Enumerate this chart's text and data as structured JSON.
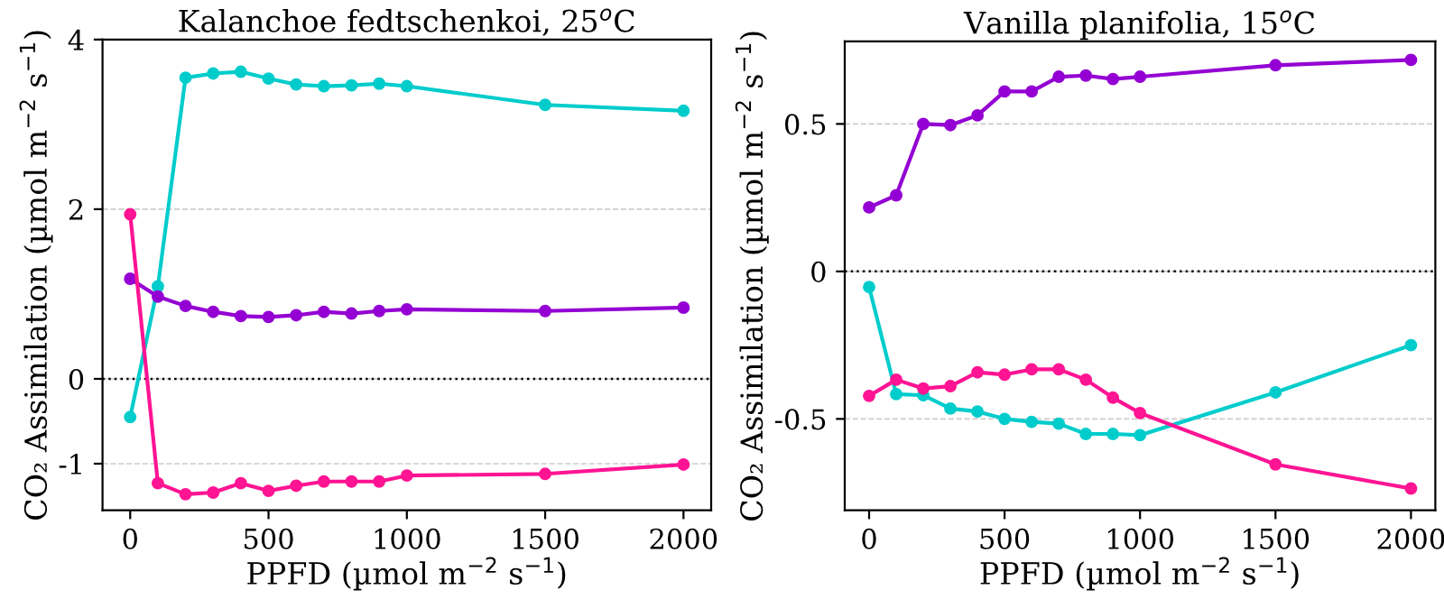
{
  "chart_data": [
    {
      "type": "line",
      "title": "Kalanchoe fedtschenkoi, 25$^{o}$C",
      "xlabel": "PPFD (µmol m$^{−2}$ s$^{−1}$)",
      "ylabel": "CO₂ Assimilation (µmol m$^{−2}$ s$^{−1}$)",
      "x": [
        0,
        100,
        200,
        300,
        400,
        500,
        600,
        700,
        800,
        900,
        1000,
        1500,
        2000
      ],
      "series": [
        {
          "color": "#00cccc",
          "values": [
            -0.45,
            1.09,
            3.55,
            3.6,
            3.62,
            3.54,
            3.47,
            3.45,
            3.46,
            3.48,
            3.45,
            3.23,
            3.16
          ]
        },
        {
          "color": "#9400d3",
          "values": [
            1.18,
            0.97,
            0.86,
            0.79,
            0.74,
            0.73,
            0.75,
            0.79,
            0.77,
            0.8,
            0.82,
            0.8,
            0.84
          ]
        },
        {
          "color": "#ff1493",
          "values": [
            1.94,
            -1.23,
            -1.36,
            -1.34,
            -1.23,
            -1.32,
            -1.26,
            -1.21,
            -1.21,
            -1.21,
            -1.14,
            -1.12,
            -1.01
          ]
        }
      ],
      "xlim": [
        -100,
        2100
      ],
      "xticks": [
        0,
        500,
        1000,
        1500,
        2000
      ],
      "ylim": [
        -1.55,
        4.0
      ],
      "yticks": [
        -1,
        0,
        2,
        4
      ],
      "grid": "y",
      "marker": "circle",
      "line_style": "solid",
      "ref_lines": [
        {
          "axis": "y",
          "value": 0,
          "color": "#000000",
          "line_style": "dotted"
        }
      ]
    },
    {
      "type": "line",
      "title": "Vanilla planifolia, 15$^{o}$C",
      "xlabel": "PPFD (µmol m$^{−2}$ s$^{−1}$)",
      "ylabel": "CO₂ Assimilation (µmol m$^{−2}$ s$^{−1}$)",
      "x": [
        0,
        100,
        200,
        300,
        400,
        500,
        600,
        700,
        800,
        900,
        1000,
        1500,
        2000
      ],
      "series": [
        {
          "color": "#9400d3",
          "values": [
            0.217,
            0.258,
            0.5,
            0.496,
            0.529,
            0.61,
            0.61,
            0.66,
            0.664,
            0.652,
            0.66,
            0.699,
            0.717
          ]
        },
        {
          "color": "#00cccc",
          "values": [
            -0.053,
            -0.416,
            -0.42,
            -0.465,
            -0.475,
            -0.5,
            -0.51,
            -0.516,
            -0.551,
            -0.551,
            -0.555,
            -0.41,
            -0.25
          ]
        },
        {
          "color": "#ff1493",
          "values": [
            -0.422,
            -0.367,
            -0.397,
            -0.389,
            -0.342,
            -0.35,
            -0.332,
            -0.332,
            -0.367,
            -0.428,
            -0.48,
            -0.654,
            -0.736
          ]
        }
      ],
      "xlim": [
        -90,
        2090
      ],
      "xticks": [
        0,
        500,
        1000,
        1500,
        2000
      ],
      "ylim": [
        -0.81,
        0.78
      ],
      "yticks": [
        -0.5,
        0,
        0.5
      ],
      "grid": "y",
      "marker": "circle",
      "line_style": "solid",
      "ref_lines": [
        {
          "axis": "y",
          "value": 0,
          "color": "#000000",
          "line_style": "dotted"
        }
      ]
    }
  ]
}
